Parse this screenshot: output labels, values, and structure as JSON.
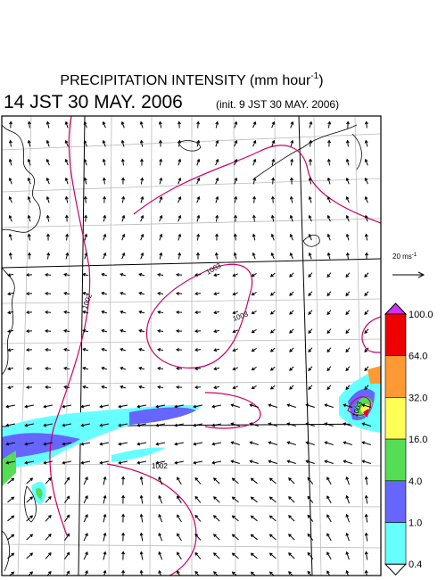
{
  "header": {
    "title_main": "PRECIPITATION INTENSITY (mm hour",
    "title_exponent": "-1",
    "title_end": ")",
    "time": "14 JST 30 MAY. 2006",
    "init": "(init. 9 JST 30 MAY. 2006)"
  },
  "scale": {
    "label": "20 ms",
    "exponent": "-1"
  },
  "contour_labels": [
    "1003",
    "1003",
    "1002",
    "1002",
    "1003"
  ],
  "colorbar": {
    "levels": [
      {
        "value": 100,
        "label": "100.0"
      },
      {
        "value": 64,
        "label": "64.0"
      },
      {
        "value": 32,
        "label": "32.0"
      },
      {
        "value": 16,
        "label": "16.0"
      },
      {
        "value": 4,
        "label": "4.0"
      },
      {
        "value": 1,
        "label": "1.0"
      },
      {
        "value": 0.4,
        "label": "0.4"
      }
    ],
    "colors": [
      "#ee0000",
      "#ff9933",
      "#ffff55",
      "#55dd55",
      "#6666ff",
      "#66ffff"
    ],
    "over_color": "#cc33ff",
    "under_color": "#ffffff"
  }
}
